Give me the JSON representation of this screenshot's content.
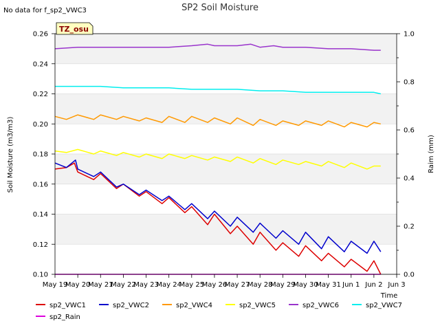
{
  "header": {
    "title": "SP2 Soil Moisture",
    "no_data": "No data for f_sp2_VWC3",
    "tz_badge": "TZ_osu"
  },
  "chart_data": {
    "type": "line",
    "title": "SP2 Soil Moisture",
    "xlabel": "Time",
    "ylabel": "Soil Moisture (m3/m3)",
    "y2label": "Raim (mm)",
    "ylim": [
      0.1,
      0.26
    ],
    "y2lim": [
      0.0,
      1.0
    ],
    "yticks": [
      "0.10",
      "0.12",
      "0.14",
      "0.16",
      "0.18",
      "0.20",
      "0.22",
      "0.24",
      "0.26"
    ],
    "y2ticks": [
      "0.0",
      "0.2",
      "0.4",
      "0.6",
      "0.8",
      "1.0"
    ],
    "xticks": [
      "May 19",
      "May 20",
      "May 21",
      "May 22",
      "May 23",
      "May 24",
      "May 25",
      "May 26",
      "May 27",
      "May 28",
      "May 29",
      "May 30",
      "May 31",
      "Jun 1",
      "Jun 2",
      "Jun 3"
    ],
    "xlim": [
      0,
      15
    ],
    "grid": true,
    "series": [
      {
        "name": "sp2_VWC1",
        "color": "#dd0000",
        "x": [
          0.0,
          0.5,
          0.85,
          1.0,
          1.7,
          2.0,
          2.7,
          3.0,
          3.7,
          4.0,
          4.7,
          5.0,
          5.7,
          6.0,
          6.7,
          7.0,
          7.7,
          8.0,
          8.7,
          9.0,
          9.7,
          10.0,
          10.7,
          11.0,
          11.7,
          12.0,
          12.7,
          13.0,
          13.7,
          14.0,
          14.3
        ],
        "y": [
          0.17,
          0.171,
          0.174,
          0.168,
          0.163,
          0.167,
          0.157,
          0.16,
          0.152,
          0.155,
          0.147,
          0.151,
          0.141,
          0.145,
          0.133,
          0.14,
          0.127,
          0.132,
          0.12,
          0.128,
          0.116,
          0.121,
          0.112,
          0.119,
          0.109,
          0.114,
          0.105,
          0.11,
          0.102,
          0.109,
          0.1
        ]
      },
      {
        "name": "sp2_VWC2",
        "color": "#0000cc",
        "x": [
          0.0,
          0.5,
          0.9,
          1.0,
          1.7,
          2.0,
          2.7,
          3.0,
          3.7,
          4.0,
          4.7,
          5.0,
          5.7,
          6.0,
          6.7,
          7.0,
          7.7,
          8.0,
          8.7,
          9.0,
          9.7,
          10.0,
          10.7,
          11.0,
          11.7,
          12.0,
          12.7,
          13.0,
          13.7,
          14.0,
          14.3
        ],
        "y": [
          0.174,
          0.171,
          0.176,
          0.17,
          0.165,
          0.168,
          0.158,
          0.16,
          0.153,
          0.156,
          0.149,
          0.152,
          0.143,
          0.147,
          0.137,
          0.142,
          0.132,
          0.138,
          0.128,
          0.134,
          0.124,
          0.129,
          0.12,
          0.128,
          0.117,
          0.125,
          0.115,
          0.122,
          0.114,
          0.122,
          0.115
        ]
      },
      {
        "name": "sp2_VWC4",
        "color": "#ff9900",
        "x": [
          0.0,
          0.5,
          1.0,
          1.7,
          2.0,
          2.7,
          3.0,
          3.7,
          4.0,
          4.7,
          5.0,
          5.7,
          6.0,
          6.7,
          7.0,
          7.7,
          8.0,
          8.7,
          9.0,
          9.7,
          10.0,
          10.7,
          11.0,
          11.7,
          12.0,
          12.7,
          13.0,
          13.7,
          14.0,
          14.3
        ],
        "y": [
          0.205,
          0.203,
          0.206,
          0.203,
          0.206,
          0.203,
          0.205,
          0.202,
          0.204,
          0.201,
          0.205,
          0.201,
          0.205,
          0.201,
          0.204,
          0.2,
          0.204,
          0.199,
          0.203,
          0.199,
          0.202,
          0.199,
          0.202,
          0.199,
          0.202,
          0.198,
          0.201,
          0.198,
          0.201,
          0.2
        ]
      },
      {
        "name": "sp2_VWC5",
        "color": "#ffff00",
        "x": [
          0.0,
          0.5,
          1.0,
          1.7,
          2.0,
          2.7,
          3.0,
          3.7,
          4.0,
          4.7,
          5.0,
          5.7,
          6.0,
          6.7,
          7.0,
          7.7,
          8.0,
          8.7,
          9.0,
          9.7,
          10.0,
          10.7,
          11.0,
          11.7,
          12.0,
          12.7,
          13.0,
          13.7,
          14.0,
          14.3
        ],
        "y": [
          0.182,
          0.181,
          0.183,
          0.18,
          0.182,
          0.179,
          0.181,
          0.178,
          0.18,
          0.177,
          0.18,
          0.177,
          0.179,
          0.176,
          0.178,
          0.175,
          0.178,
          0.174,
          0.177,
          0.173,
          0.176,
          0.173,
          0.175,
          0.172,
          0.175,
          0.171,
          0.174,
          0.17,
          0.172,
          0.172
        ]
      },
      {
        "name": "sp2_VWC6",
        "color": "#9933cc",
        "x": [
          0.0,
          1.0,
          2.0,
          3.0,
          4.0,
          5.0,
          6.0,
          6.7,
          7.0,
          8.0,
          8.6,
          9.0,
          9.6,
          10.0,
          11.0,
          12.0,
          13.0,
          14.0,
          14.3
        ],
        "y": [
          0.25,
          0.251,
          0.251,
          0.251,
          0.251,
          0.251,
          0.252,
          0.253,
          0.252,
          0.252,
          0.253,
          0.251,
          0.252,
          0.251,
          0.251,
          0.25,
          0.25,
          0.249,
          0.249
        ]
      },
      {
        "name": "sp2_VWC7",
        "color": "#00eeee",
        "x": [
          0.0,
          1.0,
          2.0,
          3.0,
          4.0,
          5.0,
          6.0,
          7.0,
          8.0,
          9.0,
          10.0,
          11.0,
          12.0,
          13.0,
          14.0,
          14.3
        ],
        "y": [
          0.225,
          0.225,
          0.225,
          0.224,
          0.224,
          0.224,
          0.223,
          0.223,
          0.223,
          0.222,
          0.222,
          0.221,
          0.221,
          0.221,
          0.221,
          0.22
        ]
      },
      {
        "name": "sp2_Rain",
        "color": "#dd00dd",
        "axis": "right",
        "x": [
          0.0,
          14.3
        ],
        "y": [
          0.0,
          0.0
        ]
      }
    ]
  }
}
